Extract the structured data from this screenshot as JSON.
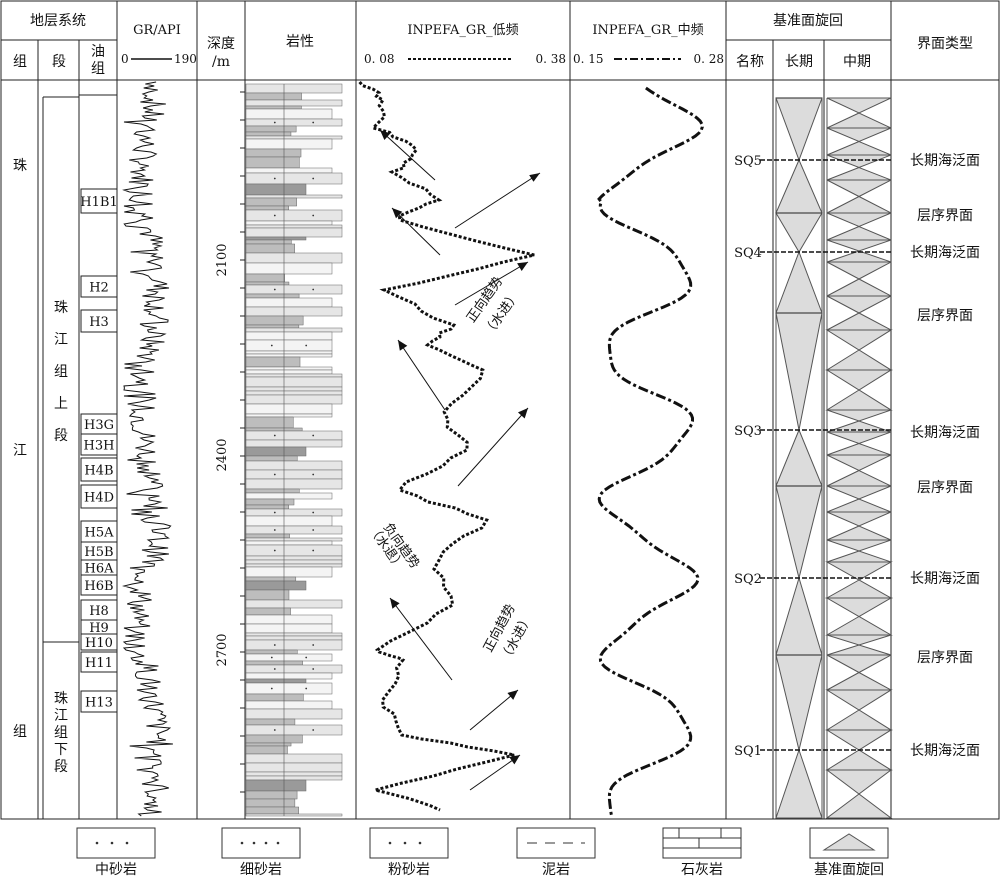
{
  "headers": {
    "strat": "地层系统",
    "group": "组",
    "member": "段",
    "oilgroup": "油组",
    "gr_title": "GR/API",
    "gr_min": "0",
    "gr_max": "190",
    "depth": "深度",
    "depth_unit": "/m",
    "lith": "岩性",
    "low_title": "INPEFA_GR_低频",
    "low_min": "0. 08",
    "low_max": "0. 38",
    "mid_title": "INPEFA_GR_中频",
    "mid_min": "0. 15",
    "mid_max": "0. 28",
    "cycle": "基准面旋回",
    "name": "名称",
    "long": "长期",
    "medium": "中期",
    "iface": "界面类型"
  },
  "group_chars": [
    "珠",
    "江",
    "组"
  ],
  "member_upper": [
    "珠",
    "江",
    "组",
    "上",
    "段"
  ],
  "member_lower": [
    "珠",
    "江",
    "组",
    "下",
    "段"
  ],
  "oil_groups": [
    "H1B1",
    "H2",
    "H3",
    "H3G",
    "H3H",
    "H4B",
    "H4D",
    "H5A",
    "H5B",
    "H6A",
    "H6B",
    "H8",
    "H9",
    "H10",
    "H11",
    "H13"
  ],
  "depth_ticks": [
    "2100",
    "2400",
    "2700"
  ],
  "sequences": [
    "SQ5",
    "SQ4",
    "SQ3",
    "SQ2",
    "SQ1"
  ],
  "interfaces": [
    "长期海泛面",
    "层序界面",
    "长期海泛面",
    "层序界面",
    "长期海泛面",
    "层序界面",
    "长期海泛面",
    "层序界面",
    "长期海泛面"
  ],
  "annotations": {
    "pos1a": "正向趋势",
    "pos1b": "（水进）",
    "neg_a": "负向趋势",
    "neg_b": "（水退）",
    "pos2a": "正向趋势",
    "pos2b": "（水进）"
  },
  "legend": [
    "中砂岩",
    "细砂岩",
    "粉砂岩",
    "泥岩",
    "石灰岩",
    "基准面旋回"
  ]
}
